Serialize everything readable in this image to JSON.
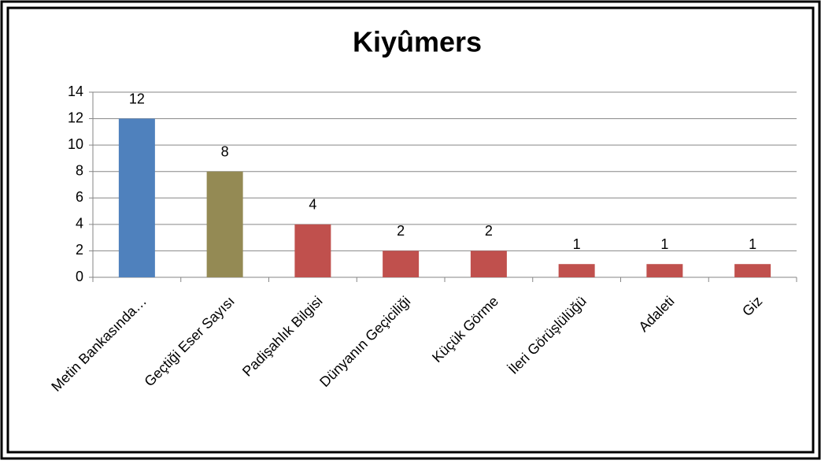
{
  "chart_data": {
    "type": "bar",
    "title": "Kiyûmers",
    "categories": [
      "Metin Bankasında…",
      "Geçtiği Eser Sayısı",
      "Padişahlık Bilgisi",
      "Dünyanın Geçiciliği",
      "Küçük Görme",
      "İleri Görüşlülüğü",
      "Adaleti",
      "Giz"
    ],
    "values": [
      12,
      8,
      4,
      2,
      2,
      1,
      1,
      1
    ],
    "colors": [
      "#4f81bd",
      "#948a54",
      "#c0504d",
      "#c0504d",
      "#c0504d",
      "#c0504d",
      "#c0504d",
      "#c0504d"
    ],
    "ylim": [
      0,
      14
    ],
    "yticks": [
      0,
      2,
      4,
      6,
      8,
      10,
      12,
      14
    ],
    "grid": true
  }
}
